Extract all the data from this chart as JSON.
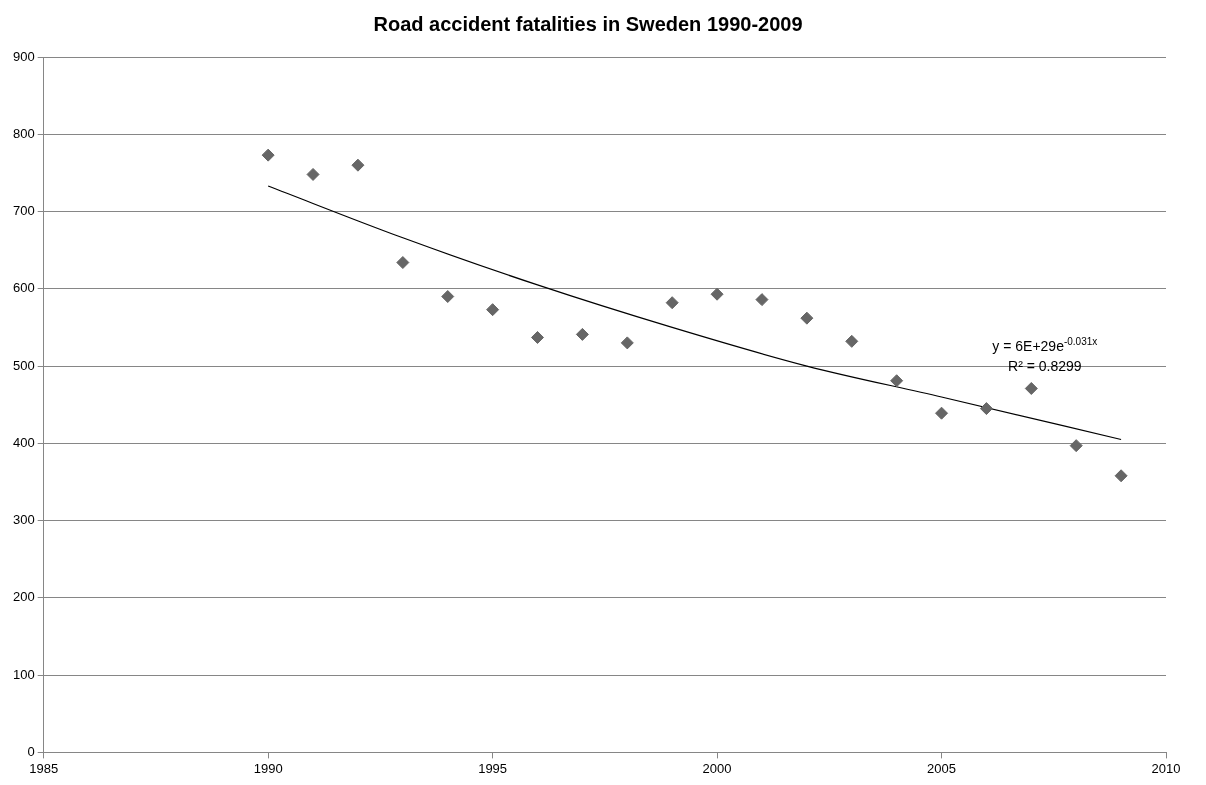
{
  "chart_data": {
    "type": "scatter",
    "title": "Road accident fatalities in Sweden 1990-2009",
    "series": [
      {
        "color": "#666666",
        "marker": "diamond",
        "x": [
          1990,
          1991,
          1992,
          1993,
          1994,
          1995,
          1996,
          1997,
          1998,
          1999,
          2000,
          2001,
          2002,
          2003,
          2004,
          2005,
          2006,
          2007,
          2008,
          2009
        ],
        "values": [
          773,
          748,
          760,
          634,
          590,
          573,
          537,
          541,
          530,
          582,
          593,
          586,
          562,
          532,
          481,
          439,
          445,
          471,
          397,
          358
        ]
      },
      {
        "type": "line",
        "marker": "none",
        "color": "#000000",
        "x": [
          1990,
          1993,
          1996,
          1999,
          2002,
          2005,
          2009
        ],
        "values": [
          733,
          666,
          605,
          550,
          500,
          460,
          405
        ]
      }
    ],
    "xlim": [
      1985,
      2010
    ],
    "xticks": [
      1985,
      1990,
      1995,
      2000,
      2005,
      2010
    ],
    "ylim": [
      0,
      900
    ],
    "yticks": [
      0,
      100,
      200,
      300,
      400,
      500,
      600,
      700,
      800,
      900
    ],
    "grid": "y",
    "legend": false,
    "annotations": [
      "y = 6E+29e$^{-0.031x}$",
      "R² = 0.8299"
    ]
  }
}
